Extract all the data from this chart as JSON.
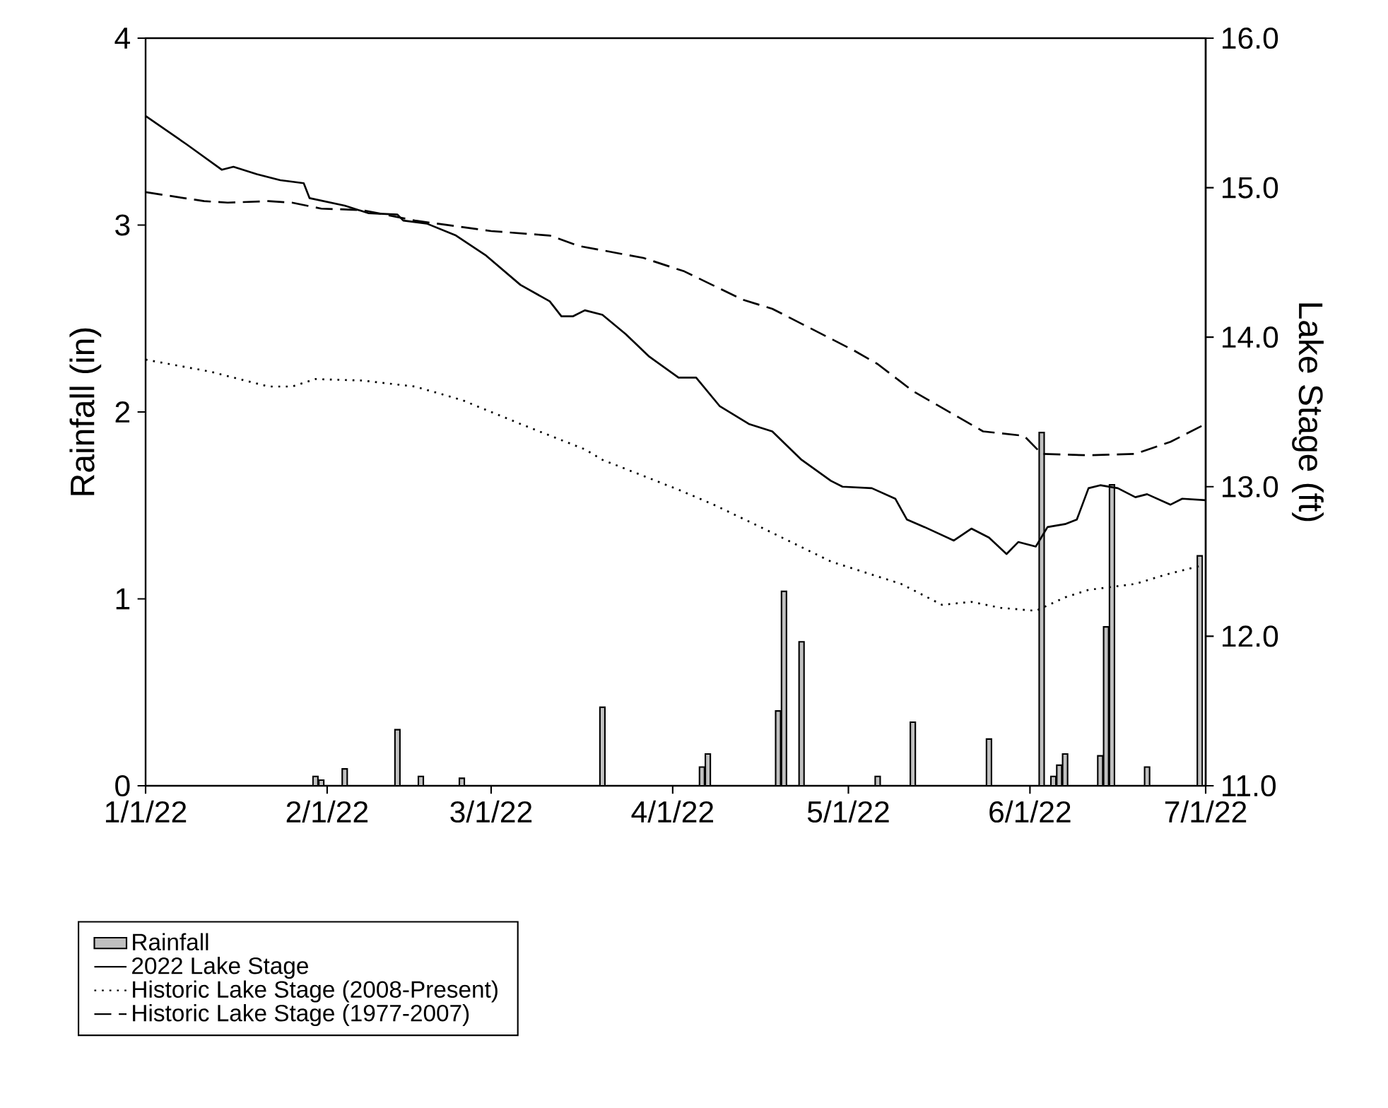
{
  "chart_data": {
    "type": "bar",
    "ylabel": "Rainfall (in)",
    "y2label": "Lake Stage (ft)",
    "xlim": [
      "2022-01-01",
      "2022-07-01"
    ],
    "xticks": [
      {
        "value": "2022-01-01",
        "label": "1/1/22"
      },
      {
        "value": "2022-02-01",
        "label": "2/1/22"
      },
      {
        "value": "2022-03-01",
        "label": "3/1/22"
      },
      {
        "value": "2022-04-01",
        "label": "4/1/22"
      },
      {
        "value": "2022-05-01",
        "label": "5/1/22"
      },
      {
        "value": "2022-06-01",
        "label": "6/1/22"
      },
      {
        "value": "2022-07-01",
        "label": "7/1/22"
      }
    ],
    "ylim": [
      0,
      4
    ],
    "yticks": [
      0,
      1,
      2,
      3,
      4
    ],
    "y2lim": [
      11,
      16
    ],
    "y2ticks": [
      {
        "value": 11,
        "label": "11.0"
      },
      {
        "value": 12,
        "label": "12.0"
      },
      {
        "value": 13,
        "label": "13.0"
      },
      {
        "value": 14,
        "label": "14.0"
      },
      {
        "value": 15,
        "label": "15.0"
      },
      {
        "value": 16,
        "label": "16.0"
      }
    ],
    "legend": "bottom left",
    "grid": false,
    "series": [
      {
        "name": "Rainfall",
        "color": "#c0c0c0",
        "x": [
          "2022-01-30",
          "2022-01-31",
          "2022-02-04",
          "2022-02-13",
          "2022-02-17",
          "2022-02-24",
          "2022-03-20",
          "2022-04-06",
          "2022-04-07",
          "2022-04-19",
          "2022-04-20",
          "2022-04-23",
          "2022-05-06",
          "2022-05-12",
          "2022-05-25",
          "2022-06-03",
          "2022-06-05",
          "2022-06-06",
          "2022-06-07",
          "2022-06-13",
          "2022-06-14",
          "2022-06-15",
          "2022-06-21",
          "2022-06-30"
        ],
        "values": [
          0.05,
          0.03,
          0.09,
          0.3,
          0.05,
          0.04,
          0.42,
          0.1,
          0.17,
          0.4,
          1.04,
          0.77,
          0.05,
          0.34,
          0.25,
          1.89,
          0.05,
          0.11,
          0.17,
          0.16,
          0.85,
          1.61,
          0.1,
          1.23
        ]
      },
      {
        "name": "2022 Lake Stage",
        "type": "line",
        "axis": "y2",
        "color": "#000000",
        "line_style": "solid",
        "x": [
          "2022-01-01",
          "2022-01-08",
          "2022-01-14",
          "2022-01-16",
          "2022-01-20",
          "2022-01-24",
          "2022-01-28",
          "2022-01-29",
          "2022-02-04",
          "2022-02-08",
          "2022-02-13",
          "2022-02-14",
          "2022-02-18",
          "2022-02-23",
          "2022-02-28",
          "2022-03-06",
          "2022-03-11",
          "2022-03-13",
          "2022-03-15",
          "2022-03-17",
          "2022-03-20",
          "2022-03-24",
          "2022-03-28",
          "2022-04-02",
          "2022-04-05",
          "2022-04-09",
          "2022-04-14",
          "2022-04-18",
          "2022-04-23",
          "2022-04-28",
          "2022-04-30",
          "2022-05-05",
          "2022-05-09",
          "2022-05-11",
          "2022-05-14",
          "2022-05-19",
          "2022-05-22",
          "2022-05-25",
          "2022-05-28",
          "2022-05-30",
          "2022-06-02",
          "2022-06-04",
          "2022-06-07",
          "2022-06-09",
          "2022-06-11",
          "2022-06-13",
          "2022-06-16",
          "2022-06-19",
          "2022-06-21",
          "2022-06-25",
          "2022-06-27",
          "2022-07-01"
        ],
        "values": [
          15.48,
          15.29,
          15.12,
          15.14,
          15.09,
          15.05,
          15.03,
          14.93,
          14.88,
          14.83,
          14.82,
          14.78,
          14.76,
          14.68,
          14.55,
          14.35,
          14.24,
          14.14,
          14.14,
          14.18,
          14.15,
          14.02,
          13.87,
          13.73,
          13.73,
          13.54,
          13.42,
          13.37,
          13.18,
          13.04,
          13.0,
          12.99,
          12.92,
          12.78,
          12.73,
          12.64,
          12.72,
          12.66,
          12.55,
          12.63,
          12.6,
          12.73,
          12.75,
          12.78,
          12.99,
          13.01,
          12.99,
          12.93,
          12.95,
          12.88,
          12.92,
          12.91
        ]
      },
      {
        "name": "Historic Lake Stage (2008-Present)",
        "type": "line",
        "axis": "y2",
        "color": "#000000",
        "line_style": "dotted",
        "x": [
          "2022-01-01",
          "2022-01-12",
          "2022-01-22",
          "2022-01-26",
          "2022-01-30",
          "2022-02-07",
          "2022-02-16",
          "2022-02-24",
          "2022-03-06",
          "2022-03-17",
          "2022-03-20",
          "2022-04-02",
          "2022-04-08",
          "2022-04-16",
          "2022-04-28",
          "2022-05-10",
          "2022-05-17",
          "2022-05-22",
          "2022-05-27",
          "2022-06-02",
          "2022-06-07",
          "2022-06-11",
          "2022-06-19",
          "2022-06-24",
          "2022-06-30"
        ],
        "values": [
          13.85,
          13.77,
          13.67,
          13.67,
          13.72,
          13.71,
          13.67,
          13.58,
          13.42,
          13.25,
          13.18,
          12.98,
          12.88,
          12.73,
          12.5,
          12.35,
          12.21,
          12.23,
          12.19,
          12.17,
          12.26,
          12.31,
          12.35,
          12.41,
          12.47
        ]
      },
      {
        "name": "Historic Lake Stage (1977-2007)",
        "type": "line",
        "axis": "y2",
        "color": "#000000",
        "line_style": "dashed",
        "x": [
          "2022-01-01",
          "2022-01-11",
          "2022-01-15",
          "2022-01-22",
          "2022-01-26",
          "2022-01-31",
          "2022-02-07",
          "2022-02-16",
          "2022-03-01",
          "2022-03-11",
          "2022-03-16",
          "2022-03-27",
          "2022-04-03",
          "2022-04-13",
          "2022-04-18",
          "2022-05-02",
          "2022-05-06",
          "2022-05-12",
          "2022-05-24",
          "2022-05-31",
          "2022-06-03",
          "2022-06-11",
          "2022-06-19",
          "2022-06-25",
          "2022-07-01"
        ],
        "values": [
          14.97,
          14.91,
          14.9,
          14.91,
          14.9,
          14.86,
          14.85,
          14.78,
          14.71,
          14.68,
          14.61,
          14.53,
          14.44,
          14.25,
          14.19,
          13.91,
          13.82,
          13.64,
          13.37,
          13.34,
          13.22,
          13.21,
          13.22,
          13.3,
          13.42
        ]
      }
    ]
  }
}
